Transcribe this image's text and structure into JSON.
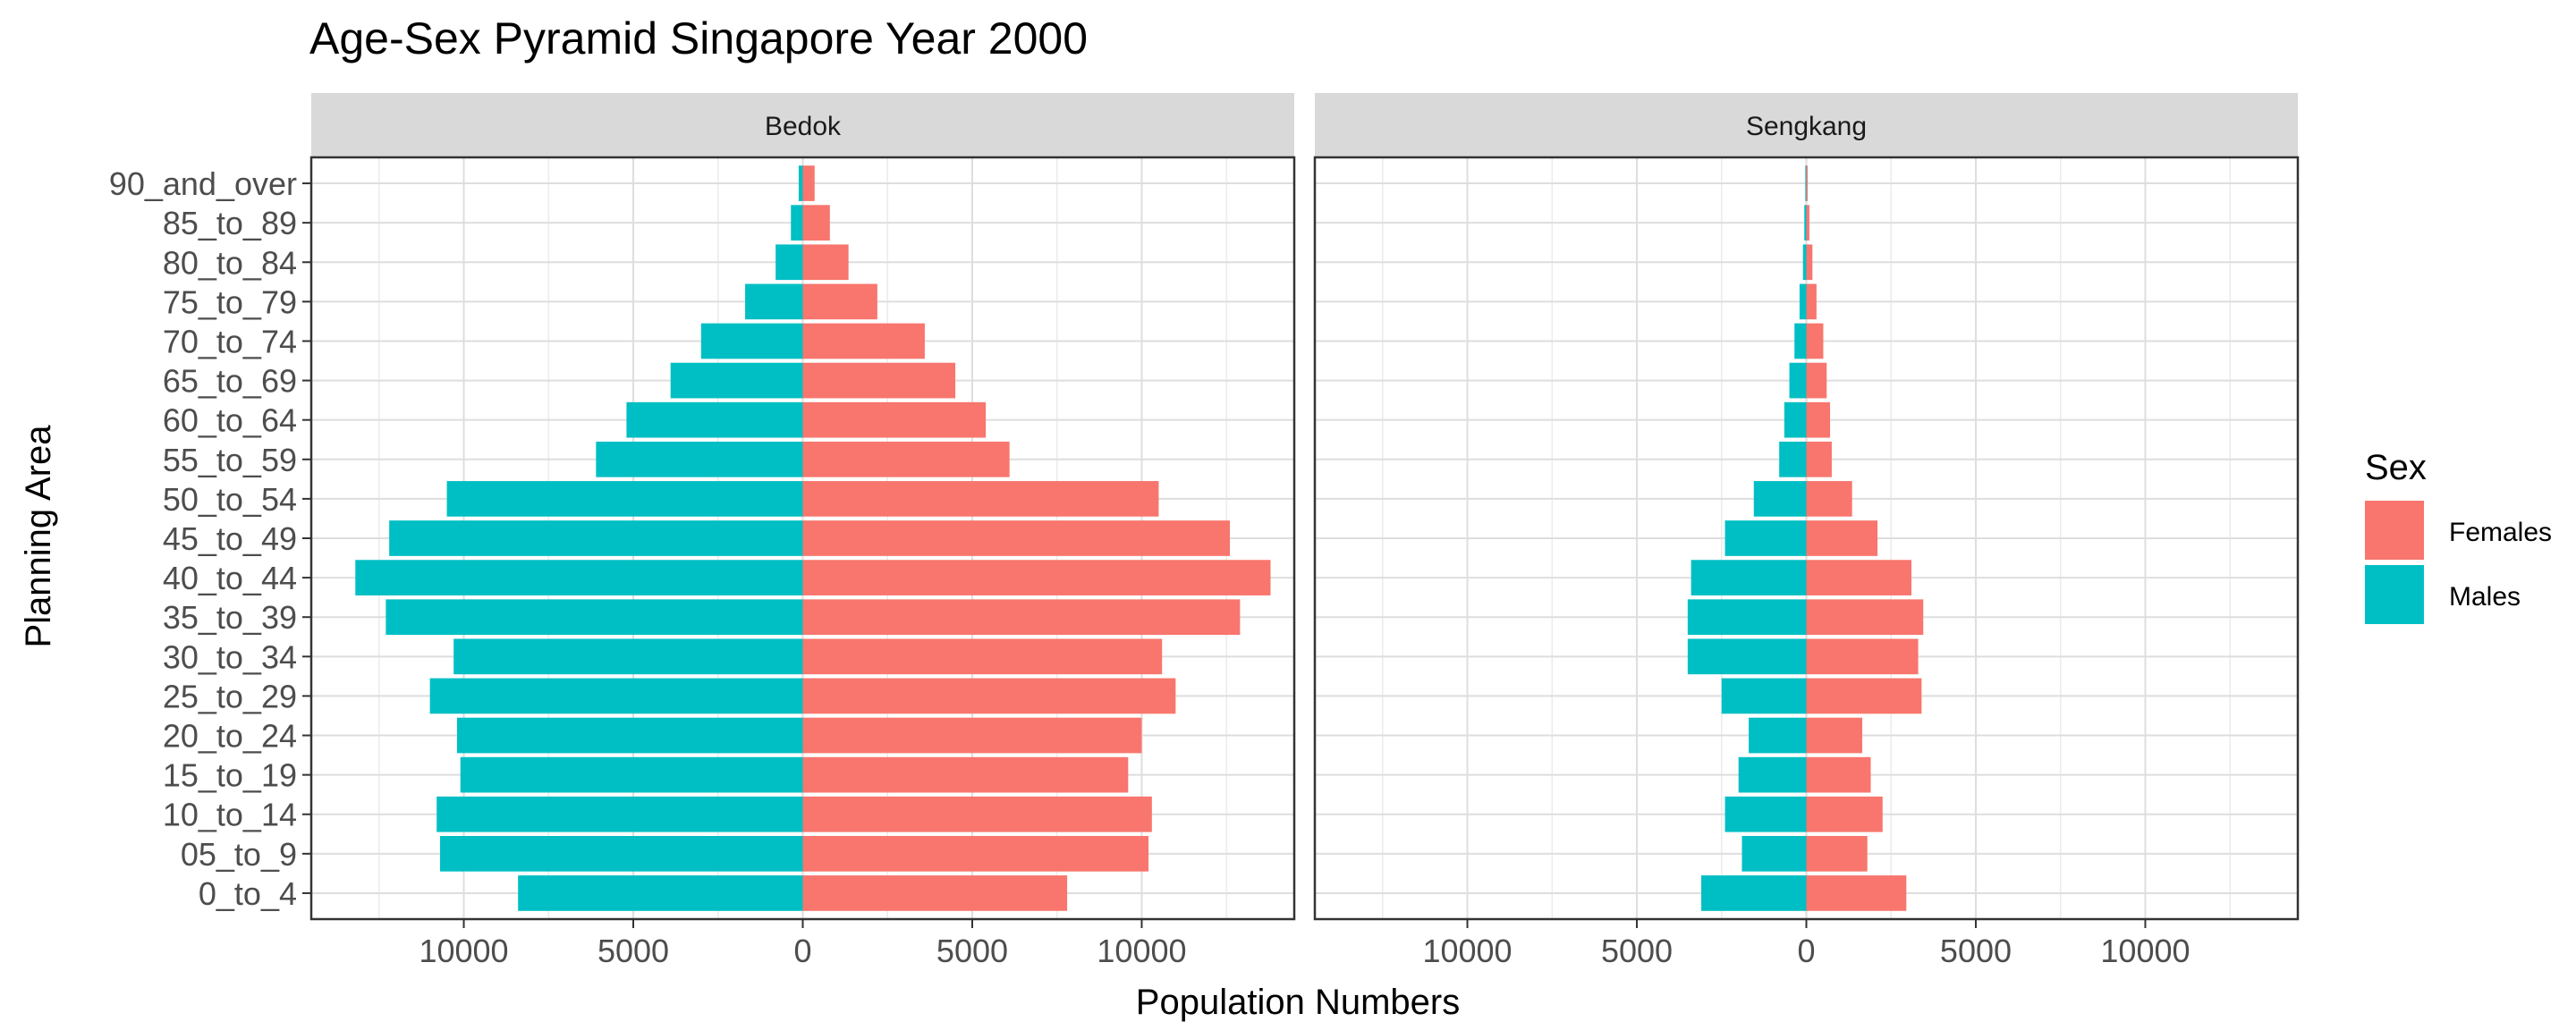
{
  "chart_data": {
    "type": "bar",
    "title": "Age-Sex Pyramid Singapore Year 2000",
    "xlabel": "Population Numbers",
    "ylabel": "Planning Area",
    "xlim": [
      -14500,
      14500
    ],
    "x_ticks": [
      -10000,
      -5000,
      0,
      5000,
      10000
    ],
    "x_tick_labels": [
      "10000",
      "5000",
      "0",
      "5000",
      "10000"
    ],
    "categories": [
      "0_to_4",
      "05_to_9",
      "10_to_14",
      "15_to_19",
      "20_to_24",
      "25_to_29",
      "30_to_34",
      "35_to_39",
      "40_to_44",
      "45_to_49",
      "50_to_54",
      "55_to_59",
      "60_to_64",
      "65_to_69",
      "70_to_74",
      "75_to_79",
      "80_to_84",
      "85_to_89",
      "90_and_over"
    ],
    "legend": {
      "title": "Sex",
      "position": "right",
      "entries": [
        {
          "name": "Females",
          "color": "#F8766D"
        },
        {
          "name": "Males",
          "color": "#00BFC4"
        }
      ]
    },
    "grid": true,
    "facets": [
      {
        "name": "Bedok",
        "series": [
          {
            "name": "Males",
            "color": "#00BFC4",
            "values": [
              8400,
              10700,
              10800,
              10100,
              10200,
              11000,
              10300,
              12300,
              13200,
              12200,
              10500,
              6100,
              5200,
              3900,
              3000,
              1700,
              800,
              350,
              120
            ]
          },
          {
            "name": "Females",
            "color": "#F8766D",
            "values": [
              7800,
              10200,
              10300,
              9600,
              10000,
              11000,
              10600,
              12900,
              13800,
              12600,
              10500,
              6100,
              5400,
              4500,
              3600,
              2200,
              1350,
              800,
              350
            ]
          }
        ]
      },
      {
        "name": "Sengkang",
        "series": [
          {
            "name": "Males",
            "color": "#00BFC4",
            "values": [
              3100,
              1900,
              2400,
              2000,
              1700,
              2500,
              3500,
              3500,
              3400,
              2400,
              1550,
              800,
              650,
              500,
              350,
              200,
              100,
              60,
              30
            ]
          },
          {
            "name": "Females",
            "color": "#F8766D",
            "values": [
              2950,
              1800,
              2250,
              1900,
              1650,
              3400,
              3300,
              3450,
              3100,
              2100,
              1350,
              750,
              700,
              600,
              500,
              300,
              180,
              90,
              40
            ]
          }
        ]
      }
    ]
  }
}
